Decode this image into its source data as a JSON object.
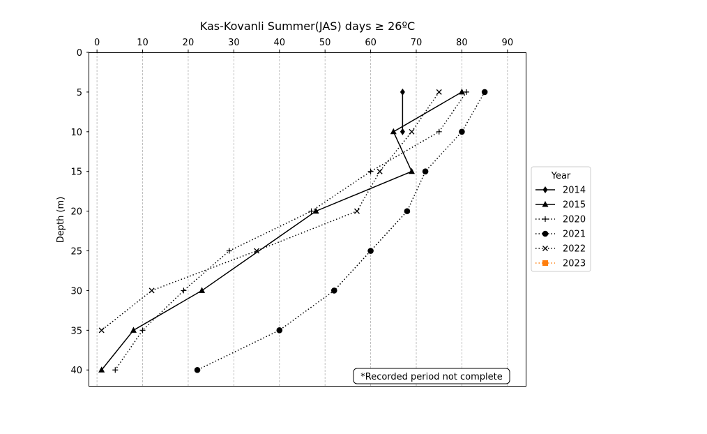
{
  "chart_data": {
    "type": "line",
    "title": "Kas-Kovanli Summer(JAS) days ≥ 26ºC",
    "xlabel": "",
    "ylabel": "Depth (m)",
    "xlim": [
      -1.7,
      94
    ],
    "ylim": [
      42,
      0
    ],
    "y_inverted": true,
    "x_axis_position": "top",
    "x_ticks": [
      0,
      10,
      20,
      30,
      40,
      50,
      60,
      70,
      80,
      90
    ],
    "y_ticks": [
      0,
      5,
      10,
      15,
      20,
      25,
      30,
      35,
      40
    ],
    "grid": "vertical dashed",
    "legend": {
      "title": "Year",
      "placement": "right"
    },
    "annotation": "*Recorded period not complete",
    "series": [
      {
        "name": "2014",
        "style": "solid",
        "marker": "diamond",
        "color": "#000000",
        "points": [
          [
            67,
            5
          ],
          [
            67,
            10
          ]
        ]
      },
      {
        "name": "2015",
        "style": "solid",
        "marker": "triangle",
        "color": "#000000",
        "points": [
          [
            80,
            5
          ],
          [
            65,
            10
          ],
          [
            69,
            15
          ],
          [
            48,
            20
          ],
          [
            23,
            30
          ],
          [
            8,
            35
          ],
          [
            1,
            40
          ]
        ]
      },
      {
        "name": "2020",
        "style": "dotted",
        "marker": "plus",
        "color": "#000000",
        "points": [
          [
            81,
            5
          ],
          [
            75,
            10
          ],
          [
            60,
            15
          ],
          [
            47,
            20
          ],
          [
            29,
            25
          ],
          [
            19,
            30
          ],
          [
            10,
            35
          ],
          [
            4,
            40
          ]
        ]
      },
      {
        "name": "2021",
        "style": "dotted",
        "marker": "circle",
        "color": "#000000",
        "points": [
          [
            85,
            5
          ],
          [
            80,
            10
          ],
          [
            72,
            15
          ],
          [
            68,
            20
          ],
          [
            60,
            25
          ],
          [
            52,
            30
          ],
          [
            40,
            35
          ],
          [
            22,
            40
          ]
        ]
      },
      {
        "name": "2022",
        "style": "dotted",
        "marker": "x",
        "color": "#000000",
        "points": [
          [
            75,
            5
          ],
          [
            69,
            10
          ],
          [
            62,
            15
          ],
          [
            57,
            20
          ],
          [
            35,
            25
          ],
          [
            12,
            30
          ],
          [
            1,
            35
          ]
        ]
      },
      {
        "name": "2023",
        "style": "dotted",
        "marker": "square",
        "color": "#ff7f0e",
        "points": []
      }
    ]
  }
}
